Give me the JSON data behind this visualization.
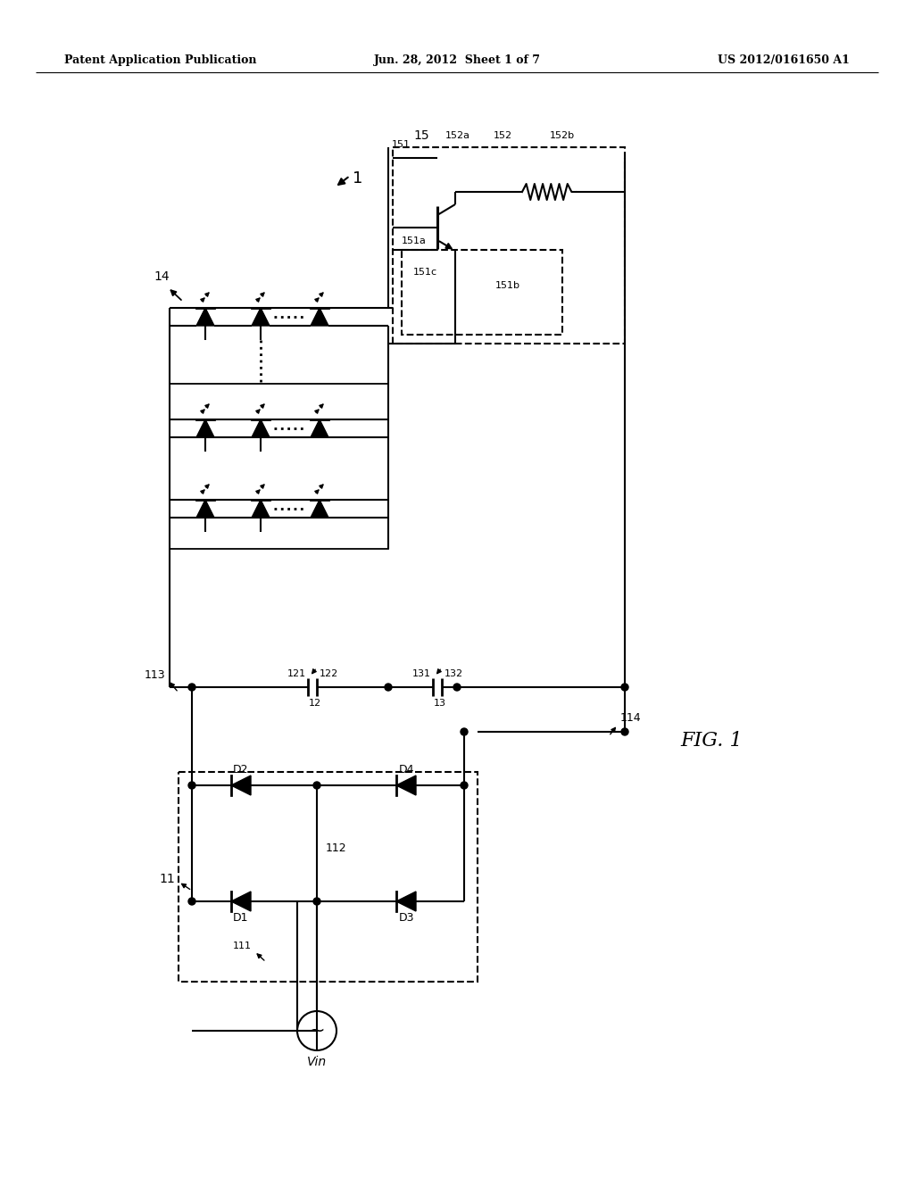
{
  "bg": "#ffffff",
  "header_left": "Patent Application Publication",
  "header_mid": "Jun. 28, 2012  Sheet 1 of 7",
  "header_right": "US 2012/0161650 A1",
  "fig_label": "FIG. 1",
  "lw": 1.5
}
